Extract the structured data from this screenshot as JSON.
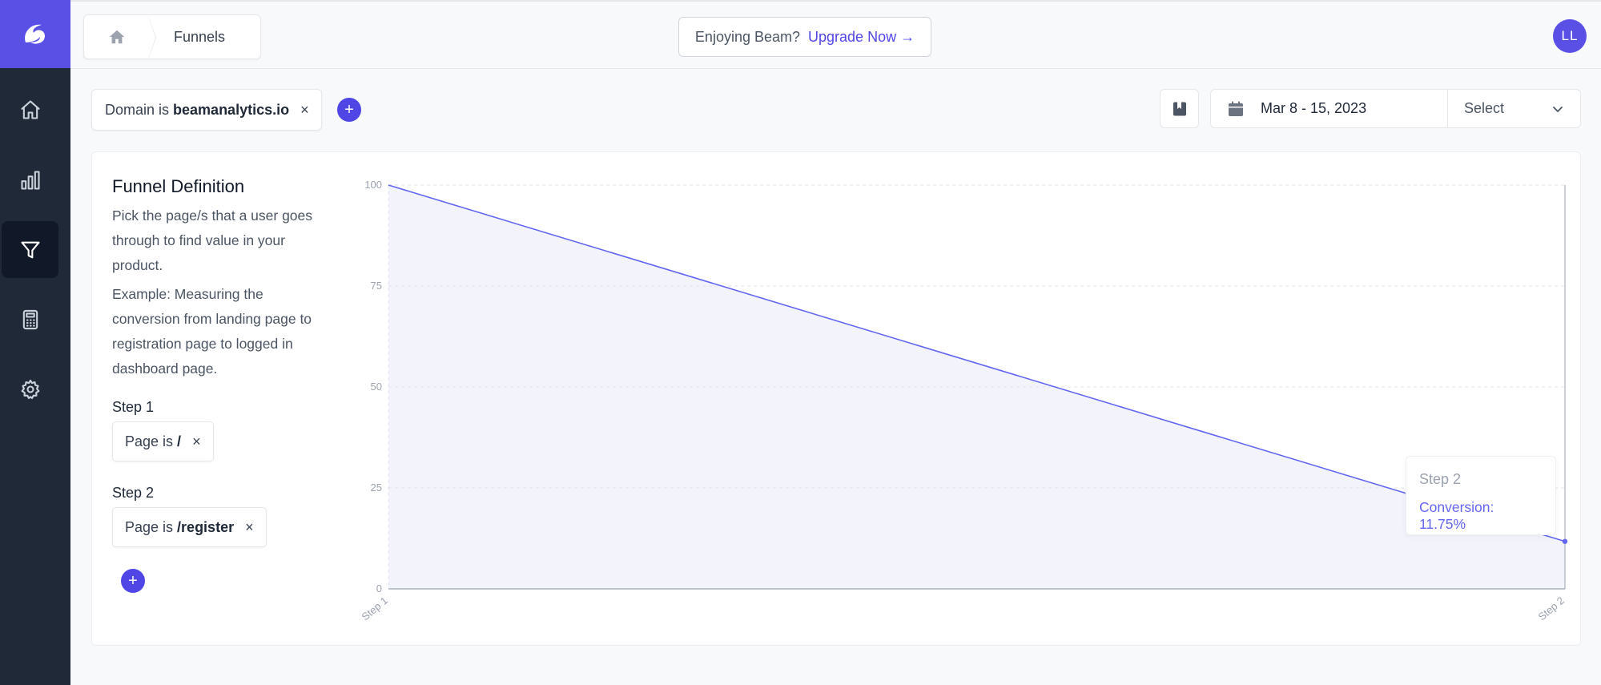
{
  "sidebar": {
    "logo": "beam-logo-icon",
    "items": [
      {
        "name": "home",
        "icon": "home-icon",
        "active": false
      },
      {
        "name": "analytics",
        "icon": "bar-chart-icon",
        "active": false
      },
      {
        "name": "funnels",
        "icon": "funnel-icon",
        "active": true
      },
      {
        "name": "calculator",
        "icon": "calculator-icon",
        "active": false
      },
      {
        "name": "settings",
        "icon": "gear-icon",
        "active": false
      }
    ]
  },
  "topbar": {
    "breadcrumb": {
      "home_icon": "home-icon",
      "current": "Funnels"
    },
    "upgrade": {
      "text": "Enjoying Beam?",
      "link": "Upgrade Now →"
    },
    "avatar": "LL"
  },
  "filters": {
    "domain_prefix": "Domain is",
    "domain_value": "beamanalytics.io",
    "remove": "×",
    "add": "+"
  },
  "date_range": {
    "value": "Mar 8 - 15, 2023",
    "select_label": "Select"
  },
  "funnel": {
    "title": "Funnel Definition",
    "desc1": "Pick the page/s that a user goes through to find value in your product.",
    "desc2": "Example: Measuring the conversion from landing page to registration page to logged in dashboard page.",
    "steps": [
      {
        "label": "Step 1",
        "prefix": "Page is",
        "value": "/",
        "remove": "×"
      },
      {
        "label": "Step 2",
        "prefix": "Page is",
        "value": "/register",
        "remove": "×"
      }
    ],
    "add": "+"
  },
  "chart_data": {
    "type": "area",
    "categories": [
      "Step 1",
      "Step 2"
    ],
    "values": [
      100,
      11.75
    ],
    "ylim": [
      0,
      100
    ],
    "yticks": [
      0,
      25,
      50,
      75,
      100
    ],
    "grid": true,
    "line_color": "#6366f1",
    "fill_color": "#f3f3fc",
    "tooltip": {
      "title": "Step 2",
      "label": "Conversion: 11.75%"
    }
  },
  "colors": {
    "accent": "#4f46e5",
    "sidebar": "#1f2937",
    "logo_bg": "#5b50e6"
  }
}
